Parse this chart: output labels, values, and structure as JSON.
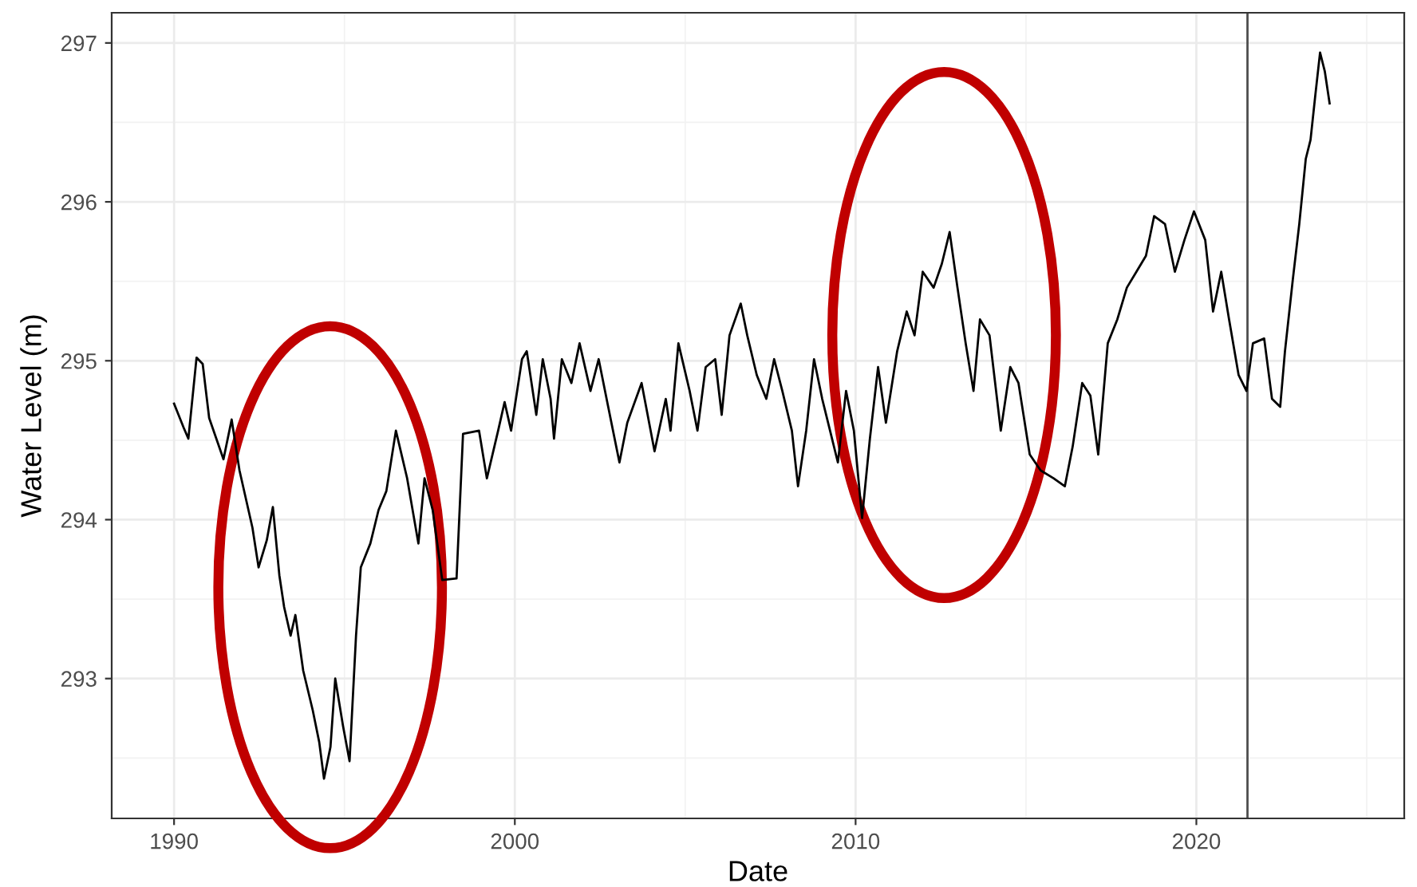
{
  "chart_data": {
    "type": "line",
    "xlabel": "Date",
    "ylabel": "Water Level (m)",
    "xlim": [
      1988.17,
      2026.1
    ],
    "ylim": [
      292.12,
      297.19
    ],
    "xticks": [
      1990,
      2000,
      2010,
      2020
    ],
    "yticks": [
      293,
      294,
      295,
      296,
      297
    ],
    "grid": true,
    "line_style": "solid",
    "marker": "none",
    "ref_lines": [
      {
        "axis": "x",
        "value": 2021.5,
        "color": "#4d4d4d"
      }
    ],
    "series": [
      {
        "color": "#000000",
        "x": [
          1990.0,
          1990.28,
          1990.42,
          1990.66,
          1990.84,
          1991.03,
          1991.45,
          1991.69,
          1991.92,
          1992.3,
          1992.48,
          1992.72,
          1992.9,
          1993.09,
          1993.23,
          1993.42,
          1993.56,
          1993.79,
          1994.07,
          1994.26,
          1994.4,
          1994.59,
          1994.73,
          1994.96,
          1995.15,
          1995.34,
          1995.48,
          1995.76,
          1996.0,
          1996.23,
          1996.51,
          1996.84,
          1997.17,
          1997.35,
          1997.59,
          1997.87,
          1998.29,
          1998.48,
          1998.95,
          1999.18,
          1999.51,
          1999.7,
          1999.89,
          2000.21,
          2000.35,
          2000.63,
          2000.82,
          2001.05,
          2001.15,
          2001.38,
          2001.66,
          2001.9,
          2002.22,
          2002.46,
          2002.74,
          2003.07,
          2003.3,
          2003.72,
          2004.1,
          2004.43,
          2004.57,
          2004.8,
          2005.13,
          2005.36,
          2005.6,
          2005.88,
          2006.07,
          2006.3,
          2006.63,
          2006.82,
          2007.1,
          2007.38,
          2007.61,
          2007.85,
          2008.13,
          2008.31,
          2008.55,
          2008.78,
          2009.02,
          2009.25,
          2009.48,
          2009.72,
          2009.95,
          2010.19,
          2010.42,
          2010.66,
          2010.89,
          2011.22,
          2011.5,
          2011.73,
          2011.97,
          2012.29,
          2012.53,
          2012.76,
          2012.99,
          2013.23,
          2013.46,
          2013.65,
          2013.93,
          2014.26,
          2014.54,
          2014.78,
          2015.11,
          2015.43,
          2015.81,
          2016.14,
          2016.37,
          2016.65,
          2016.89,
          2017.12,
          2017.4,
          2017.68,
          2017.96,
          2018.24,
          2018.52,
          2018.76,
          2019.08,
          2019.37,
          2019.65,
          2019.93,
          2020.26,
          2020.49,
          2020.73,
          2020.96,
          2021.24,
          2021.47,
          2021.66,
          2021.99,
          2022.22,
          2022.46,
          2022.6,
          2022.83,
          2023.02,
          2023.21,
          2023.35,
          2023.49,
          2023.63,
          2023.77,
          2023.91
        ],
        "values": [
          294.73,
          294.58,
          294.51,
          295.02,
          294.98,
          294.64,
          294.38,
          294.63,
          294.31,
          293.95,
          293.7,
          293.87,
          294.08,
          293.65,
          293.45,
          293.27,
          293.4,
          293.05,
          292.8,
          292.6,
          292.37,
          292.57,
          293.0,
          292.7,
          292.48,
          293.27,
          293.7,
          293.85,
          294.06,
          294.18,
          294.56,
          294.26,
          293.85,
          294.26,
          294.06,
          293.62,
          293.63,
          294.54,
          294.56,
          294.26,
          294.56,
          294.74,
          294.56,
          295.01,
          295.06,
          294.66,
          295.01,
          294.76,
          294.51,
          295.01,
          294.86,
          295.11,
          294.81,
          295.01,
          294.71,
          294.36,
          294.61,
          294.86,
          294.43,
          294.76,
          294.56,
          295.11,
          294.81,
          294.56,
          294.96,
          295.01,
          294.66,
          295.16,
          295.36,
          295.16,
          294.91,
          294.76,
          295.01,
          294.81,
          294.56,
          294.21,
          294.56,
          295.01,
          294.76,
          294.56,
          294.36,
          294.81,
          294.56,
          294.01,
          294.51,
          294.96,
          294.61,
          295.06,
          295.31,
          295.16,
          295.56,
          295.46,
          295.61,
          295.81,
          295.46,
          295.11,
          294.81,
          295.26,
          295.16,
          294.56,
          294.96,
          294.86,
          294.41,
          294.31,
          294.26,
          294.21,
          294.46,
          294.86,
          294.78,
          294.41,
          295.11,
          295.26,
          295.46,
          295.56,
          295.66,
          295.91,
          295.86,
          295.56,
          295.76,
          295.94,
          295.76,
          295.31,
          295.56,
          295.26,
          294.91,
          294.81,
          295.11,
          295.14,
          294.76,
          294.71,
          295.06,
          295.51,
          295.86,
          296.27,
          296.39,
          296.67,
          296.94,
          296.82,
          296.62
        ]
      }
    ]
  }
}
